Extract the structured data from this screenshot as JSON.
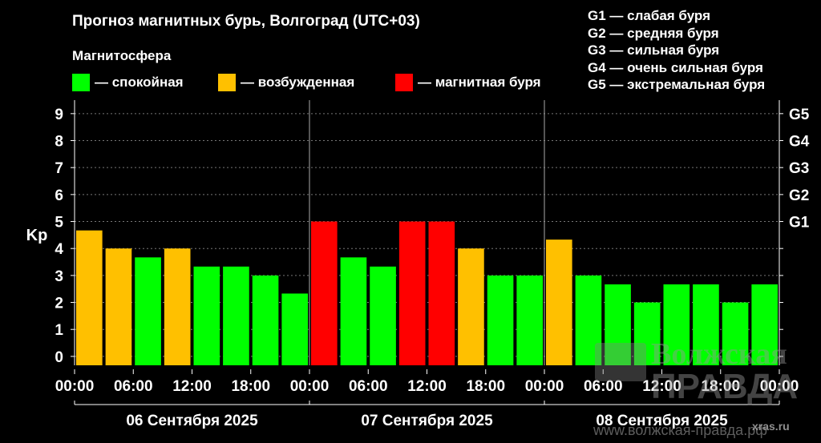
{
  "header": {
    "title": "Прогноз магнитных бурь, Волгоград (UTC+03)",
    "section_label": "Магнитосфера"
  },
  "legend": [
    {
      "label": "— спокойная",
      "color": "#00ff00"
    },
    {
      "label": "— возбужденная",
      "color": "#ffc000"
    },
    {
      "label": "— магнитная буря",
      "color": "#ff0000"
    }
  ],
  "storm_levels": [
    "G1 — слабая буря",
    "G2 — средняя буря",
    "G3 — сильная буря",
    "G4 — очень сильная буря",
    "G5 — экстремальная буря"
  ],
  "watermark": {
    "name_line1": "Волжская",
    "name_line2": "ПРАВДА",
    "site": "xras.ru",
    "bottom": "www.волжская-правда.рф"
  },
  "chart_data": {
    "type": "bar",
    "ylabel": "Kp",
    "ylim": [
      0,
      9
    ],
    "yticks": [
      "0",
      "1",
      "2",
      "3",
      "4",
      "5",
      "6",
      "7",
      "8",
      "9"
    ],
    "right_ticks": [
      {
        "kp": 5,
        "label": "G1"
      },
      {
        "kp": 6,
        "label": "G2"
      },
      {
        "kp": 7,
        "label": "G3"
      },
      {
        "kp": 8,
        "label": "G4"
      },
      {
        "kp": 9,
        "label": "G5"
      }
    ],
    "grid": true,
    "xtick_labels": [
      "00:00",
      "06:00",
      "12:00",
      "18:00",
      "00:00",
      "06:00",
      "12:00",
      "18:00",
      "00:00",
      "06:00",
      "12:00",
      "18:00",
      "00:00"
    ],
    "days": [
      "06 Сентября 2025",
      "07 Сентября 2025",
      "08 Сентября 2025"
    ],
    "values": [
      4.67,
      4.0,
      3.67,
      4.0,
      3.33,
      3.33,
      3.0,
      2.33,
      5.0,
      3.67,
      3.33,
      5.0,
      5.0,
      4.0,
      3.0,
      3.0,
      4.33,
      3.0,
      2.67,
      2.0,
      2.67,
      2.67,
      2.0,
      2.67
    ],
    "levels": [
      "excited",
      "excited",
      "quiet",
      "excited",
      "quiet",
      "quiet",
      "quiet",
      "quiet",
      "storm",
      "quiet",
      "quiet",
      "storm",
      "storm",
      "excited",
      "quiet",
      "quiet",
      "excited",
      "quiet",
      "quiet",
      "quiet",
      "quiet",
      "quiet",
      "quiet",
      "quiet"
    ],
    "colors": {
      "quiet": "#00ff00",
      "excited": "#ffc000",
      "storm": "#ff0000"
    }
  }
}
